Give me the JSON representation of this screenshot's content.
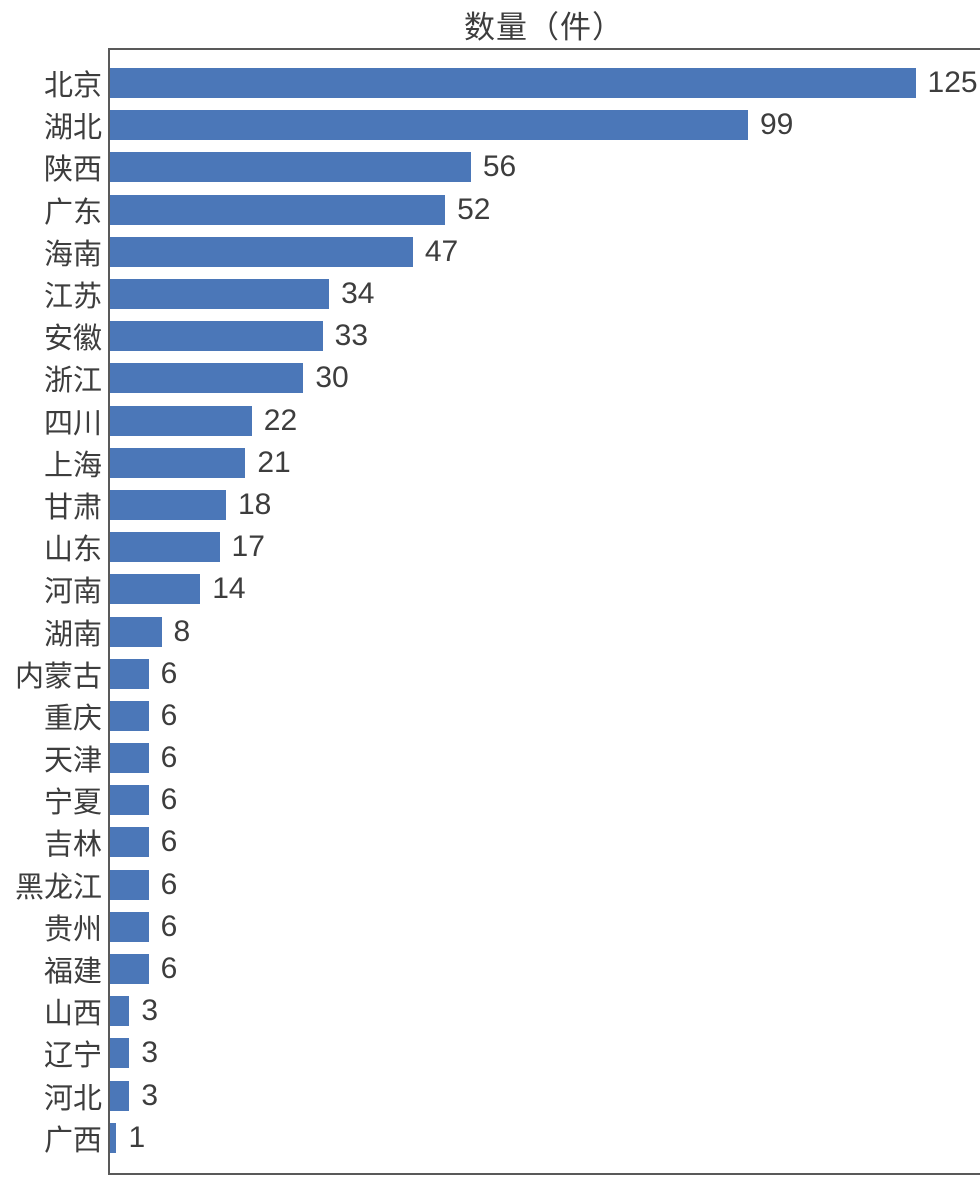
{
  "title": "数量（件）",
  "colors": {
    "bar": "#4b77b8",
    "text": "#3d3d3d",
    "axis": "#595959",
    "background": "#ffffff"
  },
  "chart_data": {
    "type": "bar",
    "orientation": "horizontal",
    "title": "数量（件）",
    "xlabel": "",
    "ylabel": "",
    "xlim": [
      0,
      135
    ],
    "grid": false,
    "legend": "none",
    "value_labels": true,
    "categories": [
      "北京",
      "湖北",
      "陕西",
      "广东",
      "海南",
      "江苏",
      "安徽",
      "浙江",
      "四川",
      "上海",
      "甘肃",
      "山东",
      "河南",
      "湖南",
      "内蒙古",
      "重庆",
      "天津",
      "宁夏",
      "吉林",
      "黑龙江",
      "贵州",
      "福建",
      "山西",
      "辽宁",
      "河北",
      "广西"
    ],
    "values": [
      125,
      99,
      56,
      52,
      47,
      34,
      33,
      30,
      22,
      21,
      18,
      17,
      14,
      8,
      6,
      6,
      6,
      6,
      6,
      6,
      6,
      6,
      3,
      3,
      3,
      1
    ]
  }
}
